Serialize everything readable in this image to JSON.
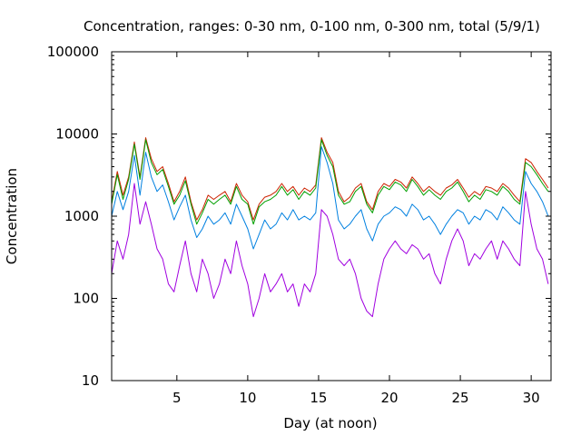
{
  "chart_data": {
    "type": "line",
    "title": "Concentration, ranges: 0-30 nm, 0-100 nm, 0-300 nm, total (5/9/1)",
    "xlabel": "Day (at noon)",
    "ylabel": "Concentration",
    "xlim": [
      0.4,
      31.4
    ],
    "ylim": [
      10,
      100000
    ],
    "yscale": "log",
    "x_ticks": [
      5,
      10,
      15,
      20,
      25,
      30
    ],
    "y_ticks": [
      10,
      100,
      1000,
      10000,
      100000
    ],
    "x_tick_labels": [
      "5",
      "10",
      "15",
      "20",
      "25",
      "30"
    ],
    "y_tick_labels": [
      "10",
      "100",
      "1000",
      "10000",
      "100000"
    ],
    "grid": false,
    "legend": "none",
    "series": [
      {
        "color": "#cc2200",
        "x": [
          0.4,
          0.8,
          1.2,
          1.6,
          2.0,
          2.4,
          2.8,
          3.2,
          3.6,
          4.0,
          4.4,
          4.8,
          5.2,
          5.6,
          6.0,
          6.4,
          6.8,
          7.2,
          7.6,
          8.0,
          8.4,
          8.8,
          9.2,
          9.6,
          10.0,
          10.4,
          10.8,
          11.2,
          11.6,
          12.0,
          12.4,
          12.8,
          13.2,
          13.6,
          14.0,
          14.4,
          14.8,
          15.2,
          15.6,
          16.0,
          16.4,
          16.8,
          17.2,
          17.6,
          18.0,
          18.4,
          18.8,
          19.2,
          19.6,
          20.0,
          20.4,
          20.8,
          21.2,
          21.6,
          22.0,
          22.4,
          22.8,
          23.2,
          23.6,
          24.0,
          24.4,
          24.8,
          25.2,
          25.6,
          26.0,
          26.4,
          26.8,
          27.2,
          27.6,
          28.0,
          28.4,
          28.8,
          29.2,
          29.6,
          30.0,
          30.4,
          30.8,
          31.2
        ],
        "y": [
          1500,
          3500,
          1800,
          3000,
          8000,
          3000,
          9000,
          5000,
          3500,
          4000,
          2500,
          1500,
          2000,
          3000,
          1500,
          900,
          1200,
          1800,
          1600,
          1800,
          2000,
          1500,
          2500,
          1800,
          1500,
          900,
          1400,
          1700,
          1800,
          2000,
          2500,
          2000,
          2300,
          1800,
          2200,
          2000,
          2400,
          9000,
          6000,
          4500,
          2000,
          1500,
          1700,
          2200,
          2500,
          1500,
          1200,
          2000,
          2500,
          2300,
          2800,
          2600,
          2200,
          3000,
          2500,
          2000,
          2300,
          2000,
          1800,
          2200,
          2400,
          2800,
          2200,
          1700,
          2000,
          1800,
          2300,
          2200,
          2000,
          2500,
          2200,
          1800,
          1500,
          5000,
          4500,
          3500,
          2800,
          2200
        ]
      },
      {
        "color": "#00a000",
        "x": [
          0.4,
          0.8,
          1.2,
          1.6,
          2.0,
          2.4,
          2.8,
          3.2,
          3.6,
          4.0,
          4.4,
          4.8,
          5.2,
          5.6,
          6.0,
          6.4,
          6.8,
          7.2,
          7.6,
          8.0,
          8.4,
          8.8,
          9.2,
          9.6,
          10.0,
          10.4,
          10.8,
          11.2,
          11.6,
          12.0,
          12.4,
          12.8,
          13.2,
          13.6,
          14.0,
          14.4,
          14.8,
          15.2,
          15.6,
          16.0,
          16.4,
          16.8,
          17.2,
          17.6,
          18.0,
          18.4,
          18.8,
          19.2,
          19.6,
          20.0,
          20.4,
          20.8,
          21.2,
          21.6,
          22.0,
          22.4,
          22.8,
          23.2,
          23.6,
          24.0,
          24.4,
          24.8,
          25.2,
          25.6,
          26.0,
          26.4,
          26.8,
          27.2,
          27.6,
          28.0,
          28.4,
          28.8,
          29.2,
          29.6,
          30.0,
          30.4,
          30.8,
          31.2
        ],
        "y": [
          1400,
          3200,
          1600,
          2800,
          7500,
          2800,
          8500,
          4500,
          3200,
          3700,
          2300,
          1400,
          1800,
          2700,
          1400,
          800,
          1100,
          1600,
          1400,
          1600,
          1800,
          1400,
          2300,
          1600,
          1400,
          800,
          1300,
          1500,
          1600,
          1800,
          2300,
          1800,
          2100,
          1600,
          2000,
          1800,
          2200,
          8500,
          5500,
          4000,
          1800,
          1400,
          1500,
          2000,
          2300,
          1400,
          1100,
          1800,
          2300,
          2100,
          2600,
          2400,
          2000,
          2800,
          2300,
          1800,
          2100,
          1800,
          1600,
          2000,
          2200,
          2600,
          2000,
          1500,
          1800,
          1600,
          2100,
          2000,
          1800,
          2300,
          2000,
          1600,
          1400,
          4500,
          4000,
          3200,
          2500,
          2000
        ]
      },
      {
        "color": "#0080e0",
        "x": [
          0.4,
          0.8,
          1.2,
          1.6,
          2.0,
          2.4,
          2.8,
          3.2,
          3.6,
          4.0,
          4.4,
          4.8,
          5.2,
          5.6,
          6.0,
          6.4,
          6.8,
          7.2,
          7.6,
          8.0,
          8.4,
          8.8,
          9.2,
          9.6,
          10.0,
          10.4,
          10.8,
          11.2,
          11.6,
          12.0,
          12.4,
          12.8,
          13.2,
          13.6,
          14.0,
          14.4,
          14.8,
          15.2,
          15.6,
          16.0,
          16.4,
          16.8,
          17.2,
          17.6,
          18.0,
          18.4,
          18.8,
          19.2,
          19.6,
          20.0,
          20.4,
          20.8,
          21.2,
          21.6,
          22.0,
          22.4,
          22.8,
          23.2,
          23.6,
          24.0,
          24.4,
          24.8,
          25.2,
          25.6,
          26.0,
          26.4,
          26.8,
          27.2,
          27.6,
          28.0,
          28.4,
          28.8,
          29.2,
          29.6,
          30.0,
          30.4,
          30.8,
          31.2
        ],
        "y": [
          1000,
          2000,
          1200,
          2000,
          5500,
          1800,
          6000,
          3000,
          2000,
          2400,
          1500,
          900,
          1300,
          1800,
          900,
          550,
          700,
          1000,
          800,
          900,
          1100,
          800,
          1400,
          1000,
          700,
          400,
          600,
          900,
          700,
          800,
          1100,
          900,
          1200,
          900,
          1000,
          900,
          1100,
          7000,
          4500,
          2500,
          900,
          700,
          800,
          1000,
          1200,
          700,
          500,
          800,
          1000,
          1100,
          1300,
          1200,
          1000,
          1400,
          1200,
          900,
          1000,
          800,
          600,
          800,
          1000,
          1200,
          1100,
          800,
          1000,
          900,
          1200,
          1100,
          900,
          1300,
          1100,
          900,
          800,
          3500,
          2500,
          2000,
          1500,
          1000
        ]
      },
      {
        "color": "#a000e0",
        "x": [
          0.4,
          0.8,
          1.2,
          1.6,
          2.0,
          2.4,
          2.8,
          3.2,
          3.6,
          4.0,
          4.4,
          4.8,
          5.2,
          5.6,
          6.0,
          6.4,
          6.8,
          7.2,
          7.6,
          8.0,
          8.4,
          8.8,
          9.2,
          9.6,
          10.0,
          10.4,
          10.8,
          11.2,
          11.6,
          12.0,
          12.4,
          12.8,
          13.2,
          13.6,
          14.0,
          14.4,
          14.8,
          15.2,
          15.6,
          16.0,
          16.4,
          16.8,
          17.2,
          17.6,
          18.0,
          18.4,
          18.8,
          19.2,
          19.6,
          20.0,
          20.4,
          20.8,
          21.2,
          21.6,
          22.0,
          22.4,
          22.8,
          23.2,
          23.6,
          24.0,
          24.4,
          24.8,
          25.2,
          25.6,
          26.0,
          26.4,
          26.8,
          27.2,
          27.6,
          28.0,
          28.4,
          28.8,
          29.2,
          29.6,
          30.0,
          30.4,
          30.8,
          31.2
        ],
        "y": [
          200,
          500,
          300,
          600,
          2500,
          800,
          1500,
          800,
          400,
          300,
          150,
          120,
          250,
          500,
          200,
          120,
          300,
          200,
          100,
          150,
          300,
          200,
          500,
          250,
          150,
          60,
          100,
          200,
          120,
          150,
          200,
          120,
          150,
          80,
          150,
          120,
          200,
          1200,
          1000,
          600,
          300,
          250,
          300,
          200,
          100,
          70,
          60,
          150,
          300,
          400,
          500,
          400,
          350,
          450,
          400,
          300,
          350,
          200,
          150,
          300,
          500,
          700,
          500,
          250,
          350,
          300,
          400,
          500,
          300,
          500,
          400,
          300,
          250,
          2000,
          800,
          400,
          300,
          150
        ]
      }
    ]
  }
}
